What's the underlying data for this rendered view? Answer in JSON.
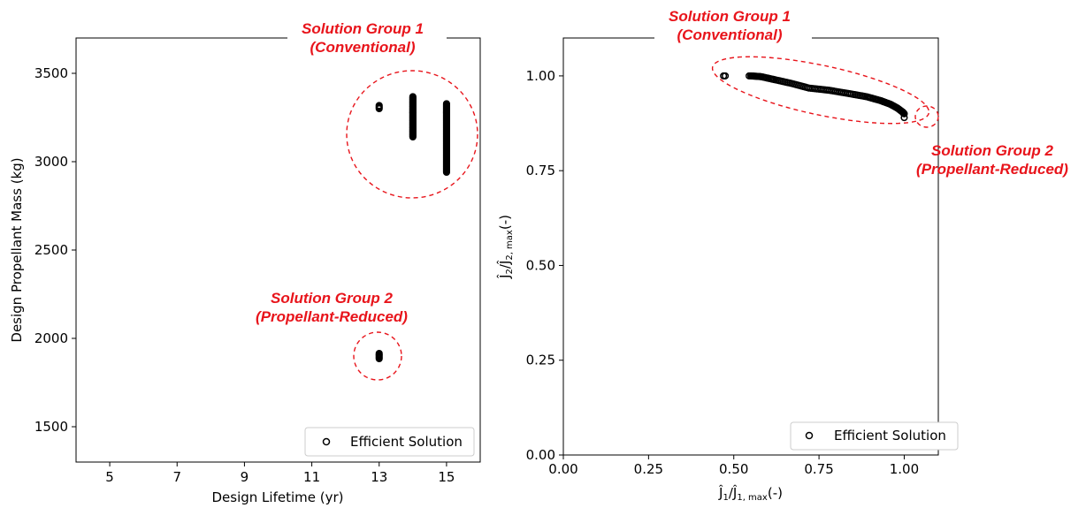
{
  "chart_data": [
    {
      "type": "scatter",
      "xlabel": "Design Lifetime (yr)",
      "ylabel": "Design Propellant Mass (kg)",
      "xlim": [
        4,
        16
      ],
      "ylim": [
        1300,
        3700
      ],
      "xticks": [
        5,
        7,
        9,
        11,
        13,
        15
      ],
      "yticks": [
        1500,
        2000,
        2500,
        3000,
        3500
      ],
      "grid": false,
      "legend": {
        "label": "Efficient Solution",
        "placement": "lower-right"
      },
      "series": [
        {
          "name": "Efficient Solution",
          "columns": [
            {
              "x": 13,
              "y_min": 3300,
              "y_max": 3320
            },
            {
              "x": 14,
              "y_min": 3140,
              "y_max": 3370
            },
            {
              "x": 15,
              "y_min": 2940,
              "y_max": 3330
            },
            {
              "x": 13,
              "y_min": 1885,
              "y_max": 1920
            }
          ]
        }
      ],
      "annotations": [
        {
          "line1": "Solution Group 1",
          "line2": "(Conventional)",
          "color": "#e8141b",
          "center_x": 14,
          "center_y": 3150
        },
        {
          "line1": "Solution Group 2",
          "line2": "(Propellant-Reduced)",
          "color": "#e8141b",
          "center_x": 13,
          "center_y": 1900
        }
      ]
    },
    {
      "type": "scatter",
      "xlabel_main": "Ĵ",
      "xlabel_sub1": "1",
      "xlabel_slash": "/Ĵ",
      "xlabel_sub2": "1, max",
      "xlabel_unit": "(-)",
      "ylabel_main": "Ĵ",
      "ylabel_sub1": "2",
      "ylabel_slash": "/Ĵ",
      "ylabel_sub2": "2, max",
      "ylabel_unit": "(-)",
      "xlim": [
        0.0,
        1.1
      ],
      "ylim": [
        0.0,
        1.1
      ],
      "xticks": [
        "0.00",
        "0.25",
        "0.50",
        "0.75",
        "1.00"
      ],
      "yticks": [
        "0.00",
        "0.25",
        "0.50",
        "0.75",
        "1.00"
      ],
      "grid": false,
      "legend": {
        "label": "Efficient Solution",
        "placement": "lower-right"
      },
      "series": [
        {
          "name": "Efficient Solution",
          "points": [
            [
              0.47,
              1.0
            ],
            [
              0.475,
              1.0
            ],
            [
              0.545,
              1.0
            ],
            [
              0.55,
              1.0
            ],
            [
              0.58,
              0.998
            ],
            [
              0.62,
              0.99
            ],
            [
              0.67,
              0.98
            ],
            [
              0.72,
              0.968
            ],
            [
              0.78,
              0.962
            ],
            [
              0.84,
              0.953
            ],
            [
              0.89,
              0.945
            ],
            [
              0.93,
              0.935
            ],
            [
              0.96,
              0.925
            ],
            [
              0.98,
              0.915
            ],
            [
              0.995,
              0.905
            ],
            [
              1.0,
              0.9
            ]
          ],
          "isolated": [
            [
              1.0,
              0.89
            ]
          ]
        }
      ],
      "annotations": [
        {
          "line1": "Solution Group 1",
          "line2": "(Conventional)",
          "color": "#e8141b"
        },
        {
          "line1": "Solution Group 2",
          "line2": "(Propellant-Reduced)",
          "color": "#e8141b"
        }
      ]
    }
  ]
}
